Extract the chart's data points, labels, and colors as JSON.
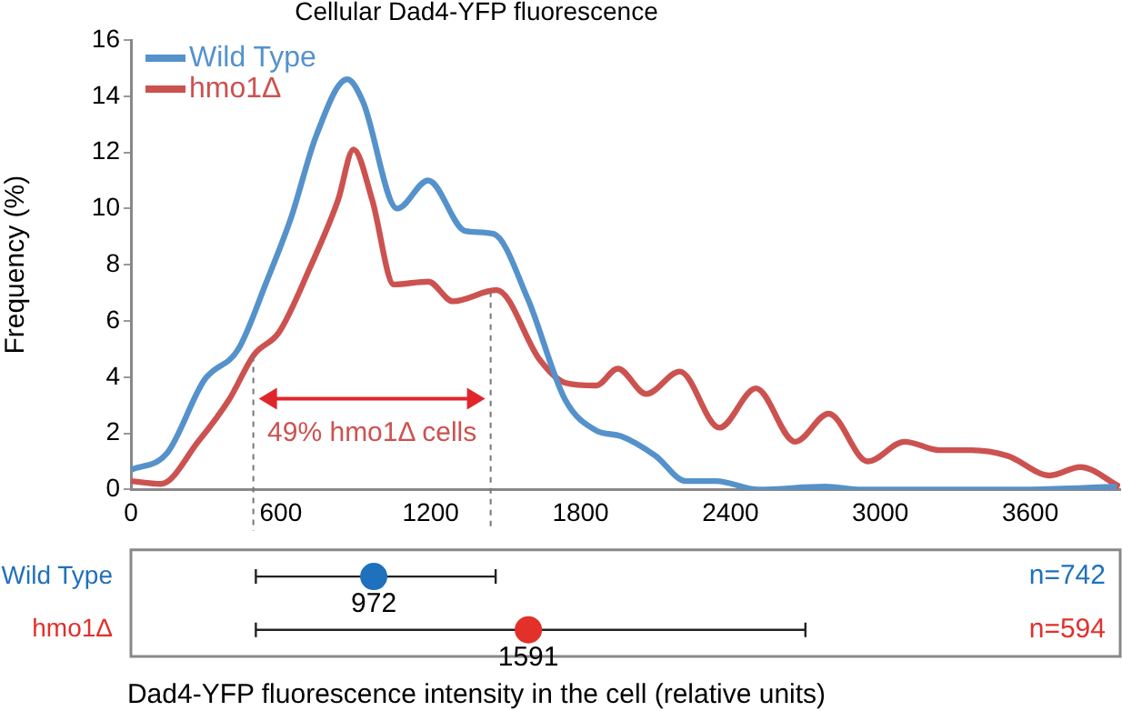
{
  "chart_data": [
    {
      "type": "line",
      "title": "Cellular Dad4-YFP fluorescence",
      "ylabel": "Frequency (%)",
      "xlim": [
        0,
        3960
      ],
      "xticks": [
        0,
        600,
        1200,
        1800,
        2400,
        3000,
        3600
      ],
      "ylim": [
        0,
        16
      ],
      "yticks": [
        0,
        2,
        4,
        6,
        8,
        10,
        12,
        14,
        16
      ],
      "grid": false,
      "legend": "top left",
      "marker": "none",
      "line_style": "solid",
      "series": [
        {
          "name": "Wild Type",
          "color": "#5592cb",
          "x": [
            0,
            145,
            294,
            430,
            543,
            642,
            742,
            866,
            929,
            1066,
            1190,
            1339,
            1451,
            1588,
            1738,
            1862,
            1962,
            2100,
            2221,
            2342,
            2512,
            2780,
            2926,
            3600,
            3946
          ],
          "values": [
            0.7,
            1.3,
            3.9,
            5.0,
            7.4,
            9.7,
            12.6,
            14.6,
            13.8,
            10.0,
            11.0,
            9.2,
            9.1,
            6.8,
            3.2,
            2.1,
            1.9,
            1.2,
            0.3,
            0.3,
            0,
            0.1,
            0,
            0,
            0.1
          ]
        },
        {
          "name": "hmo1Δ",
          "color": "#cc5250",
          "x": [
            0,
            120,
            269,
            393,
            493,
            593,
            717,
            829,
            891,
            966,
            1053,
            1190,
            1289,
            1464,
            1638,
            1738,
            1862,
            1949,
            2063,
            2197,
            2356,
            2502,
            2659,
            2793,
            2950,
            3096,
            3241,
            3363,
            3509,
            3679,
            3800,
            3958
          ],
          "values": [
            0.3,
            0.2,
            1.7,
            3.2,
            4.8,
            5.6,
            7.9,
            10.3,
            12.1,
            10.3,
            7.3,
            7.4,
            6.7,
            7.1,
            4.6,
            3.8,
            3.7,
            4.3,
            3.4,
            4.2,
            2.2,
            3.6,
            1.7,
            2.7,
            1.0,
            1.7,
            1.4,
            1.4,
            1.2,
            0.5,
            0.8,
            0.1
          ]
        }
      ],
      "ref_lines": [
        {
          "axis": "x",
          "value": 490,
          "color": "#777777",
          "line_style": "dashed"
        },
        {
          "axis": "x",
          "value": 1440,
          "color": "#777777",
          "line_style": "dashed"
        }
      ],
      "annotations": [
        "49% hmo1Δ cells"
      ]
    },
    {
      "type": "scatter",
      "orientation": "horizontal",
      "categories": [
        "Wild Type",
        "hmo1Δ"
      ],
      "values": [
        972,
        1591
      ],
      "colors": [
        "#1f70bd",
        "#e2302b"
      ],
      "errors": [
        [
          500,
          1460
        ],
        [
          500,
          2700
        ]
      ],
      "xlim": [
        0,
        3960
      ],
      "tick_labels": "y",
      "data_labels": true,
      "xlabel": "Dad4-YFP fluorescence intensity in the cell (relative units)",
      "marker": "circle",
      "annotations": [
        "n=742",
        "n=594"
      ]
    }
  ]
}
